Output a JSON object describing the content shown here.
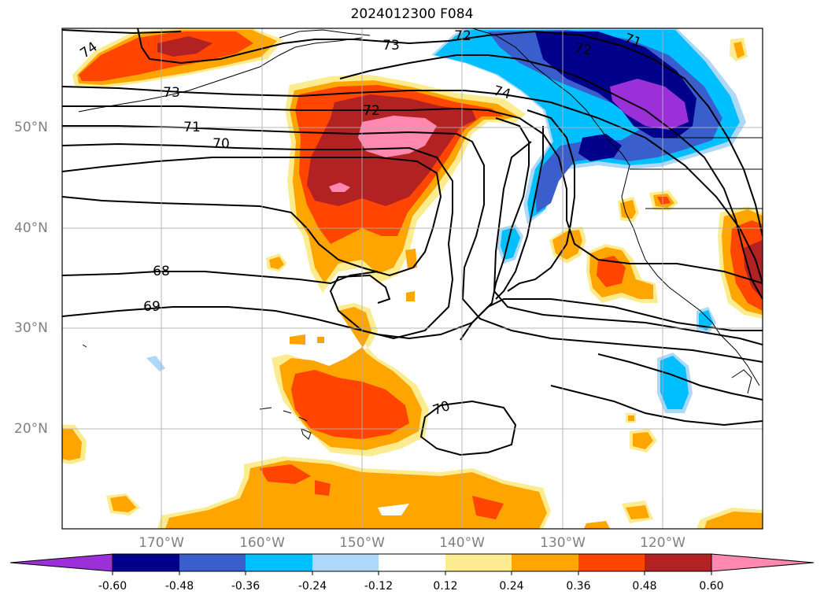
{
  "title": "2024012300 F084",
  "longitude_labels": [
    "170°W",
    "160°W",
    "150°W",
    "140°W",
    "130°W",
    "120°W"
  ],
  "latitude_labels": [
    "50°N",
    "40°N",
    "30°N",
    "20°N"
  ],
  "contour_labels": [
    "74",
    "73",
    "73",
    "72",
    "72",
    "72",
    "71",
    "71",
    "70",
    "70",
    "74",
    "68",
    "69"
  ],
  "colorbar": {
    "ticks": [
      "-0.60",
      "-0.48",
      "-0.36",
      "-0.24",
      "-0.12",
      "0.12",
      "0.24",
      "0.36",
      "0.48",
      "0.60"
    ],
    "colors": [
      "#9b30d9",
      "#00008b",
      "#3a5fcd",
      "#00bfff",
      "#add8f7",
      "#ffffff",
      "#fdeb8f",
      "#ffa500",
      "#ff4500",
      "#b22222",
      "#ff88b0"
    ]
  }
}
